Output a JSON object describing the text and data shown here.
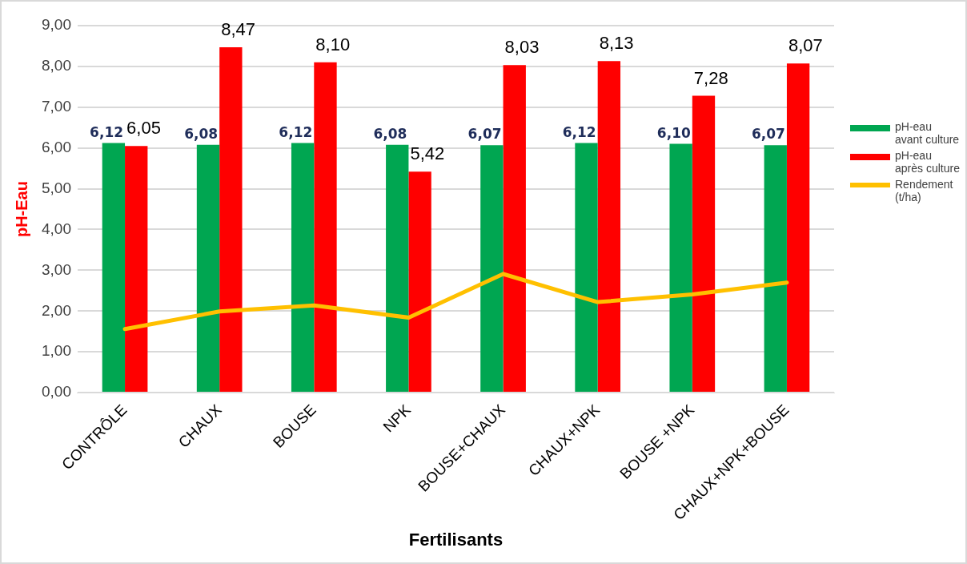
{
  "chart_data": {
    "type": "bar",
    "xlabel": "Fertilisants",
    "ylabel": "pH-Eau",
    "categories": [
      "CONTRÔLE",
      "CHAUX",
      "BOUSE",
      "NPK",
      "BOUSE+CHAUX",
      "CHAUX+NPK",
      "BOUSE +NPK",
      "CHAUX+NPK+BOUSE"
    ],
    "series": [
      {
        "name": "pH-eau avant culture",
        "color": "#00a651",
        "values": [
          6.12,
          6.08,
          6.12,
          6.08,
          6.07,
          6.12,
          6.1,
          6.07
        ],
        "value_labels": [
          "6,12",
          "6,08",
          "6,12",
          "6,08",
          "6,07",
          "6,12",
          "6,10",
          "6,07"
        ]
      },
      {
        "name": "pH-eau après culture",
        "color": "#ff0000",
        "values": [
          6.05,
          8.47,
          8.1,
          5.42,
          8.03,
          8.13,
          7.28,
          8.07
        ],
        "value_labels": [
          "6,05",
          "8,47",
          "8,10",
          "5,42",
          "8,03",
          "8,13",
          "7,28",
          "8,07"
        ]
      },
      {
        "name": "Rendement (t/ha)",
        "type": "line",
        "color": "#ffc000",
        "values": [
          1.56,
          1.99,
          2.14,
          1.84,
          2.91,
          2.22,
          2.41,
          2.7
        ]
      }
    ],
    "ylim": [
      0,
      9
    ],
    "yticks": [
      {
        "value": 0,
        "label": "0,00"
      },
      {
        "value": 1,
        "label": "1,00"
      },
      {
        "value": 2,
        "label": "2,00"
      },
      {
        "value": 3,
        "label": "3,00"
      },
      {
        "value": 4,
        "label": "4,00"
      },
      {
        "value": 5,
        "label": "5,00"
      },
      {
        "value": 6,
        "label": "6,00"
      },
      {
        "value": 7,
        "label": "7,00"
      },
      {
        "value": 8,
        "label": "8,00"
      },
      {
        "value": 9,
        "label": "9,00"
      }
    ],
    "grid": "y",
    "legend": "right",
    "marker": "none"
  }
}
